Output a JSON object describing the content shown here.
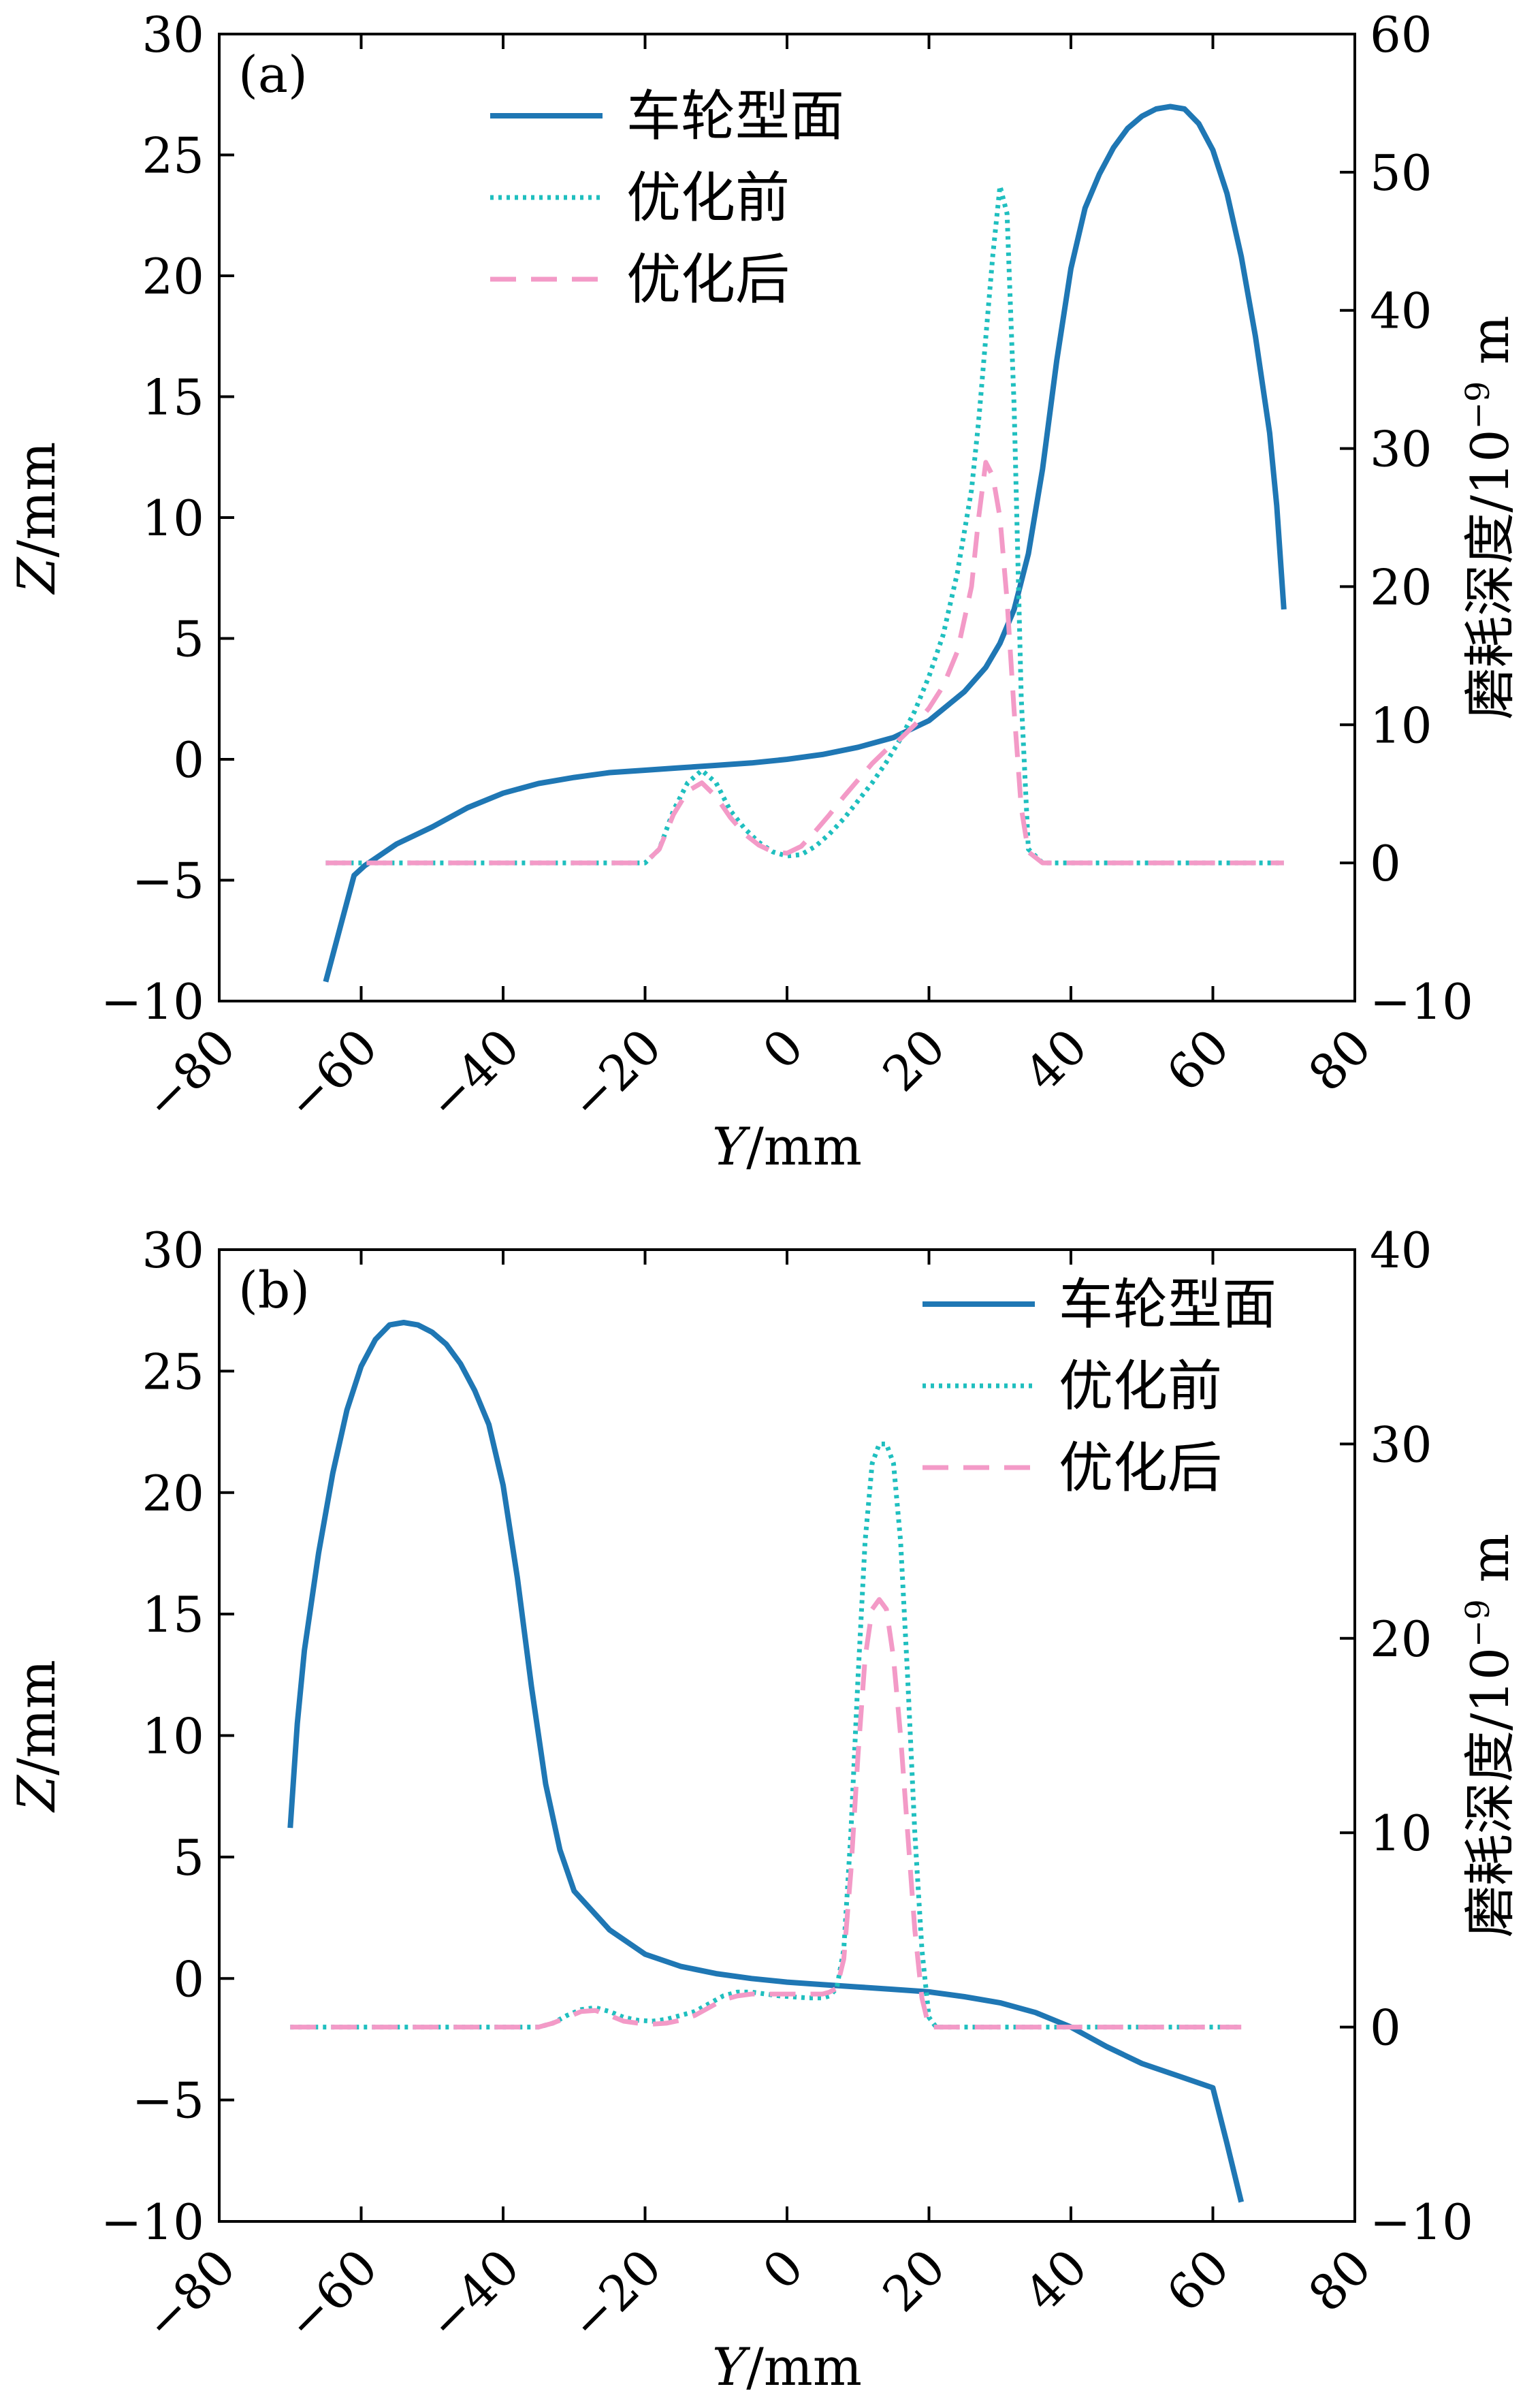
{
  "chart_data": [
    {
      "type": "line",
      "panel_label": "(a)",
      "xlabel_italic": "Y",
      "xlabel_unit": "/mm",
      "ylabel_italic": "Z",
      "ylabel_unit": "/mm",
      "y2label_text": "磨耗深度/10",
      "y2label_exp": "−9",
      "y2label_unit": " m",
      "xlim": [
        -80,
        80
      ],
      "xticks": [
        -80,
        -60,
        -40,
        -20,
        0,
        20,
        40,
        60,
        80
      ],
      "xtick_labels": [
        "−80",
        "−60",
        "−40",
        "−20",
        "0",
        "20",
        "40",
        "60",
        "80"
      ],
      "ylim": [
        -10,
        30
      ],
      "yticks": [
        -10,
        -5,
        0,
        5,
        10,
        15,
        20,
        25,
        30
      ],
      "ytick_labels": [
        "−10",
        "−5",
        "0",
        "5",
        "10",
        "15",
        "20",
        "25",
        "30"
      ],
      "y2lim": [
        -10,
        60
      ],
      "y2ticks": [
        -10,
        0,
        10,
        20,
        30,
        40,
        50,
        60
      ],
      "y2tick_labels": [
        "−10",
        "0",
        "10",
        "20",
        "30",
        "40",
        "50",
        "60"
      ],
      "legend_position": "top-center",
      "series": [
        {
          "name": "车轮型面",
          "axis": "left",
          "style": "solid",
          "color": "#1f77b4",
          "x": [
            -65,
            -63,
            -61,
            -59.5,
            -55,
            -50,
            -45,
            -40,
            -35,
            -30,
            -25,
            -20,
            -15,
            -10,
            -5,
            0,
            5,
            10,
            15,
            20,
            25,
            28,
            30,
            32,
            34,
            36,
            38,
            40,
            42,
            44,
            46,
            48,
            50,
            52,
            54,
            56,
            58,
            60,
            62,
            64,
            66,
            68,
            69,
            70
          ],
          "y": [
            -9.2,
            -7,
            -4.8,
            -4.4,
            -3.5,
            -2.8,
            -2.0,
            -1.4,
            -1.0,
            -0.75,
            -0.55,
            -0.45,
            -0.35,
            -0.25,
            -0.15,
            0,
            0.2,
            0.5,
            0.9,
            1.6,
            2.8,
            3.8,
            4.8,
            6.2,
            8.5,
            12,
            16.5,
            20.3,
            22.8,
            24.2,
            25.3,
            26.1,
            26.6,
            26.9,
            27,
            26.9,
            26.3,
            25.2,
            23.4,
            20.8,
            17.5,
            13.5,
            10.5,
            6.2
          ]
        },
        {
          "name": "优化前",
          "axis": "right",
          "style": "dotted",
          "color": "#1fbfbf",
          "x": [
            -65,
            -20,
            -18,
            -16,
            -14,
            -12,
            -10,
            -8,
            -6,
            -4,
            -2,
            0,
            2,
            4,
            6,
            8,
            10,
            12,
            14,
            16,
            18,
            20,
            22,
            24,
            26,
            27,
            28,
            29,
            30,
            31,
            32,
            33,
            34,
            36,
            40,
            70
          ],
          "y": [
            0,
            0,
            1,
            3.8,
            5.8,
            6.7,
            5.8,
            3.8,
            2.5,
            1.5,
            0.8,
            0.5,
            0.6,
            1.2,
            2.1,
            3.2,
            4.5,
            5.8,
            7.3,
            9,
            11,
            13.5,
            16.5,
            21,
            27,
            32,
            38,
            44,
            49,
            47,
            33,
            12,
            1,
            0,
            0,
            0
          ]
        },
        {
          "name": "优化后",
          "axis": "right",
          "style": "dashed",
          "color": "#f39ac7",
          "x": [
            -65,
            -20,
            -18,
            -16,
            -14,
            -12,
            -10,
            -8,
            -6,
            -4,
            -2,
            0,
            2,
            4,
            6,
            8,
            10,
            12,
            14,
            16,
            18,
            20,
            22,
            24,
            26,
            27,
            28,
            29,
            30,
            31,
            32,
            33,
            34,
            36,
            40,
            70
          ],
          "y": [
            0,
            0,
            1,
            3.5,
            5.2,
            5.8,
            4.8,
            3.3,
            2.1,
            1.3,
            0.8,
            0.7,
            1.2,
            2.3,
            3.5,
            4.8,
            6,
            7.2,
            8.2,
            9,
            10,
            11.2,
            12.8,
            15.3,
            20,
            25,
            29,
            28,
            25,
            19,
            11,
            4,
            0.8,
            0,
            0,
            0
          ]
        }
      ]
    },
    {
      "type": "line",
      "panel_label": "(b)",
      "xlabel_italic": "Y",
      "xlabel_unit": "/mm",
      "ylabel_italic": "Z",
      "ylabel_unit": "/mm",
      "y2label_text": "磨耗深度/10",
      "y2label_exp": "−9",
      "y2label_unit": " m",
      "xlim": [
        -80,
        80
      ],
      "xticks": [
        -80,
        -60,
        -40,
        -20,
        0,
        20,
        40,
        60,
        80
      ],
      "xtick_labels": [
        "−80",
        "−60",
        "−40",
        "−20",
        "0",
        "20",
        "40",
        "60",
        "80"
      ],
      "ylim": [
        -10,
        30
      ],
      "yticks": [
        -10,
        -5,
        0,
        5,
        10,
        15,
        20,
        25,
        30
      ],
      "ytick_labels": [
        "−10",
        "−5",
        "0",
        "5",
        "10",
        "15",
        "20",
        "25",
        "30"
      ],
      "y2lim": [
        -10,
        40
      ],
      "y2ticks": [
        -10,
        0,
        10,
        20,
        30,
        40
      ],
      "y2tick_labels": [
        "−10",
        "0",
        "10",
        "20",
        "30",
        "40"
      ],
      "legend_position": "top-right",
      "series": [
        {
          "name": "车轮型面",
          "axis": "left",
          "style": "solid",
          "color": "#1f77b4",
          "x": [
            -70,
            -69,
            -68,
            -66,
            -64,
            -62,
            -60,
            -58,
            -56,
            -54,
            -52,
            -50,
            -48,
            -46,
            -44,
            -42,
            -40,
            -38,
            -36,
            -34,
            -32,
            -30,
            -25,
            -20,
            -15,
            -10,
            -5,
            0,
            5,
            10,
            15,
            20,
            25,
            30,
            35,
            40,
            45,
            50,
            55,
            60,
            62,
            64
          ],
          "y": [
            6.2,
            10.5,
            13.5,
            17.5,
            20.8,
            23.4,
            25.2,
            26.3,
            26.9,
            27,
            26.9,
            26.6,
            26.1,
            25.3,
            24.2,
            22.8,
            20.3,
            16.5,
            12,
            8,
            5.3,
            3.6,
            2.0,
            1.0,
            0.5,
            0.2,
            0,
            -0.15,
            -0.25,
            -0.35,
            -0.45,
            -0.55,
            -0.75,
            -1.0,
            -1.4,
            -2.0,
            -2.8,
            -3.5,
            -4.0,
            -4.5,
            -6.8,
            -9.2
          ]
        },
        {
          "name": "优化前",
          "axis": "right",
          "style": "dotted",
          "color": "#1fbfbf",
          "x": [
            -70,
            -35,
            -33,
            -31,
            -29,
            -27,
            -25,
            -23,
            -21,
            -19,
            -17,
            -15,
            -13,
            -11,
            -9,
            -7,
            -5,
            -3,
            -1,
            1,
            3,
            5,
            6,
            7,
            8,
            9,
            10,
            11,
            12,
            13,
            14,
            15,
            16,
            17,
            18,
            19,
            20,
            21,
            25,
            64
          ],
          "y": [
            0,
            0,
            0.2,
            0.6,
            0.9,
            1.0,
            0.8,
            0.5,
            0.35,
            0.3,
            0.4,
            0.6,
            0.8,
            1.2,
            1.6,
            1.8,
            1.8,
            1.7,
            1.6,
            1.55,
            1.5,
            1.5,
            1.6,
            2,
            4,
            10,
            18,
            25,
            29,
            30,
            30,
            29,
            25,
            18,
            10,
            4,
            0.5,
            0,
            0,
            0
          ]
        },
        {
          "name": "优化后",
          "axis": "right",
          "style": "dashed",
          "color": "#f39ac7",
          "x": [
            -70,
            -35,
            -33,
            -31,
            -29,
            -27,
            -25,
            -23,
            -21,
            -19,
            -17,
            -15,
            -13,
            -11,
            -9,
            -7,
            -5,
            -3,
            -1,
            1,
            3,
            5,
            6,
            7,
            8,
            9,
            10,
            11,
            12,
            13,
            14,
            15,
            16,
            17,
            18,
            19,
            20,
            21,
            25,
            64
          ],
          "y": [
            0,
            0,
            0.2,
            0.5,
            0.8,
            0.85,
            0.6,
            0.3,
            0.2,
            0.15,
            0.2,
            0.35,
            0.6,
            1.0,
            1.4,
            1.6,
            1.7,
            1.7,
            1.7,
            1.7,
            1.7,
            1.7,
            1.8,
            2,
            3.5,
            8,
            14,
            19,
            21.5,
            22,
            21.5,
            19,
            15,
            10,
            5,
            1.5,
            0,
            0,
            0,
            0
          ]
        }
      ]
    }
  ]
}
